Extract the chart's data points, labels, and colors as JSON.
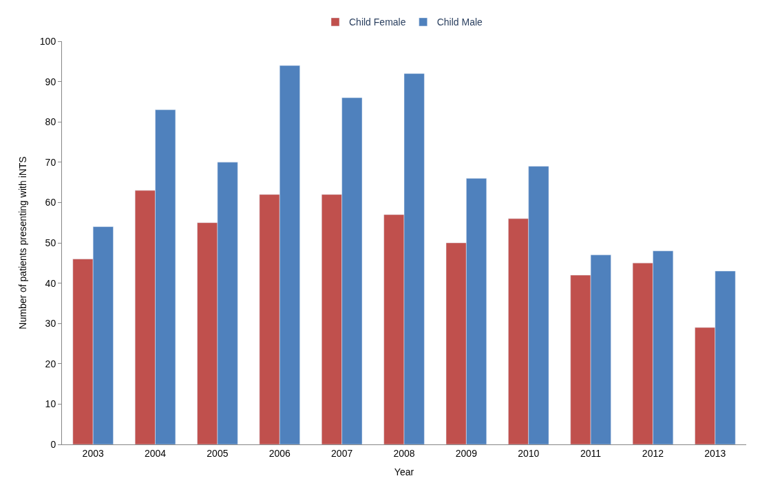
{
  "chart_data": {
    "type": "bar",
    "xlabel": "Year",
    "ylabel": "Number of patients presenting with iNTS",
    "categories": [
      "2003",
      "2004",
      "2005",
      "2006",
      "2007",
      "2008",
      "2009",
      "2010",
      "2011",
      "2012",
      "2013"
    ],
    "series": [
      {
        "name": "Child Female",
        "color": "#c0504d",
        "values": [
          46,
          63,
          55,
          62,
          62,
          57,
          50,
          56,
          42,
          45,
          29
        ]
      },
      {
        "name": "Child Male",
        "color": "#4f81bd",
        "values": [
          54,
          83,
          70,
          94,
          86,
          92,
          66,
          69,
          47,
          48,
          43
        ]
      }
    ],
    "ylim": [
      0,
      100
    ],
    "yticks": [
      0,
      10,
      20,
      30,
      40,
      50,
      60,
      70,
      80,
      90,
      100
    ],
    "grid": false,
    "legend": "top"
  }
}
